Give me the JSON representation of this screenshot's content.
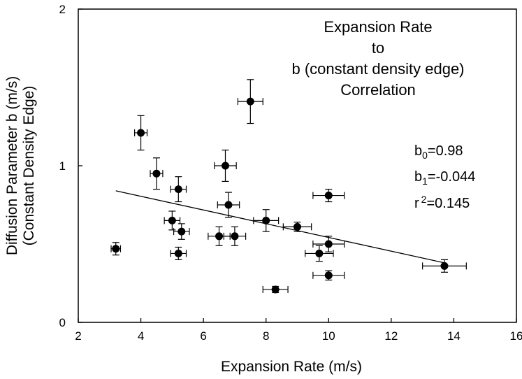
{
  "chart_data": {
    "type": "scatter",
    "title_lines": [
      "Expansion Rate",
      "to",
      "b (constant density edge)",
      "Correlation"
    ],
    "xlabel": "Expansion Rate (m/s)",
    "ylabel_lines": [
      "Diffusion Parameter b (m/s)",
      "(Constant Density Edge)"
    ],
    "xlim": [
      2,
      16
    ],
    "ylim": [
      0,
      2
    ],
    "x_ticks": [
      "2",
      "4",
      "6",
      "8",
      "10",
      "12",
      "14",
      "16"
    ],
    "y_ticks": [
      "0",
      "1",
      "2"
    ],
    "grid": false,
    "points": [
      {
        "x": 3.2,
        "y": 0.47,
        "xerr": 0.15,
        "yerr": 0.04
      },
      {
        "x": 4.0,
        "y": 1.21,
        "xerr": 0.2,
        "yerr": 0.11
      },
      {
        "x": 4.5,
        "y": 0.95,
        "xerr": 0.2,
        "yerr": 0.1
      },
      {
        "x": 5.0,
        "y": 0.65,
        "xerr": 0.25,
        "yerr": 0.06
      },
      {
        "x": 5.2,
        "y": 0.85,
        "xerr": 0.25,
        "yerr": 0.08
      },
      {
        "x": 5.2,
        "y": 0.44,
        "xerr": 0.25,
        "yerr": 0.04
      },
      {
        "x": 5.3,
        "y": 0.58,
        "xerr": 0.25,
        "yerr": 0.05
      },
      {
        "x": 6.5,
        "y": 0.55,
        "xerr": 0.35,
        "yerr": 0.06
      },
      {
        "x": 6.7,
        "y": 1.0,
        "xerr": 0.35,
        "yerr": 0.1
      },
      {
        "x": 6.8,
        "y": 0.75,
        "xerr": 0.35,
        "yerr": 0.08
      },
      {
        "x": 7.0,
        "y": 0.55,
        "xerr": 0.35,
        "yerr": 0.06
      },
      {
        "x": 7.5,
        "y": 1.41,
        "xerr": 0.4,
        "yerr": 0.14
      },
      {
        "x": 8.0,
        "y": 0.65,
        "xerr": 0.4,
        "yerr": 0.07
      },
      {
        "x": 8.3,
        "y": 0.21,
        "xerr": 0.4,
        "yerr": 0.02
      },
      {
        "x": 9.0,
        "y": 0.61,
        "xerr": 0.45,
        "yerr": 0.03
      },
      {
        "x": 9.7,
        "y": 0.44,
        "xerr": 0.45,
        "yerr": 0.05
      },
      {
        "x": 10.0,
        "y": 0.81,
        "xerr": 0.5,
        "yerr": 0.04
      },
      {
        "x": 10.0,
        "y": 0.5,
        "xerr": 0.5,
        "yerr": 0.05
      },
      {
        "x": 10.0,
        "y": 0.3,
        "xerr": 0.5,
        "yerr": 0.03
      },
      {
        "x": 13.7,
        "y": 0.36,
        "xerr": 0.7,
        "yerr": 0.04
      }
    ],
    "fit_line": {
      "x": [
        3.2,
        13.7
      ],
      "y": [
        0.84,
        0.38
      ]
    },
    "annotations": {
      "b0": {
        "base": "b",
        "sub": "0",
        "value": "=0.98"
      },
      "b1": {
        "base": "b",
        "sub": "1",
        "value": "=-0.044"
      },
      "r2": {
        "base": "r",
        "sup": "2",
        "value": "=0.145"
      }
    }
  }
}
